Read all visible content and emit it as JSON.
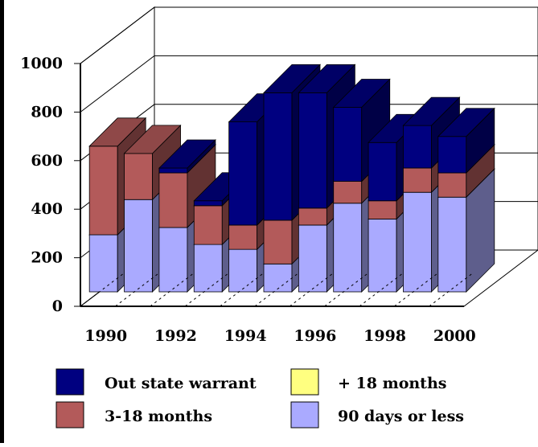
{
  "chart_data": {
    "type": "bar",
    "stacked": true,
    "three_d": true,
    "categories": [
      "1990",
      "1991",
      "1992",
      "1993",
      "1994",
      "1995",
      "1996",
      "1997",
      "1998",
      "1999",
      "2000"
    ],
    "x_tick_labels": [
      "1990",
      "1992",
      "1994",
      "1996",
      "1998",
      "2000"
    ],
    "y_tick_labels": [
      "0",
      "200",
      "400",
      "600",
      "800",
      "1000"
    ],
    "ylim": [
      0,
      1000
    ],
    "grid": true,
    "legend_position": "bottom",
    "series": [
      {
        "name": "90 days or less",
        "color": "#aaaaff",
        "values": [
          235,
          380,
          265,
          195,
          175,
          115,
          275,
          365,
          300,
          410,
          390
        ]
      },
      {
        "name": "3-18 months",
        "color": "#b35a5a",
        "values": [
          365,
          190,
          225,
          160,
          100,
          180,
          70,
          90,
          75,
          100,
          100
        ]
      },
      {
        "name": "+ 18 months",
        "color": "#ffff80",
        "values": [
          0,
          0,
          0,
          0,
          0,
          0,
          0,
          0,
          0,
          0,
          0
        ]
      },
      {
        "name": "Out state warrant",
        "color": "#000080",
        "values": [
          0,
          0,
          20,
          20,
          425,
          525,
          475,
          305,
          240,
          175,
          150
        ]
      }
    ],
    "legend": [
      {
        "label": "Out state warrant",
        "color": "#000080"
      },
      {
        "label": "+ 18 months",
        "color": "#ffff80"
      },
      {
        "label": "3-18 months",
        "color": "#b35a5a"
      },
      {
        "label": "90 days or less",
        "color": "#aaaaff"
      }
    ]
  }
}
